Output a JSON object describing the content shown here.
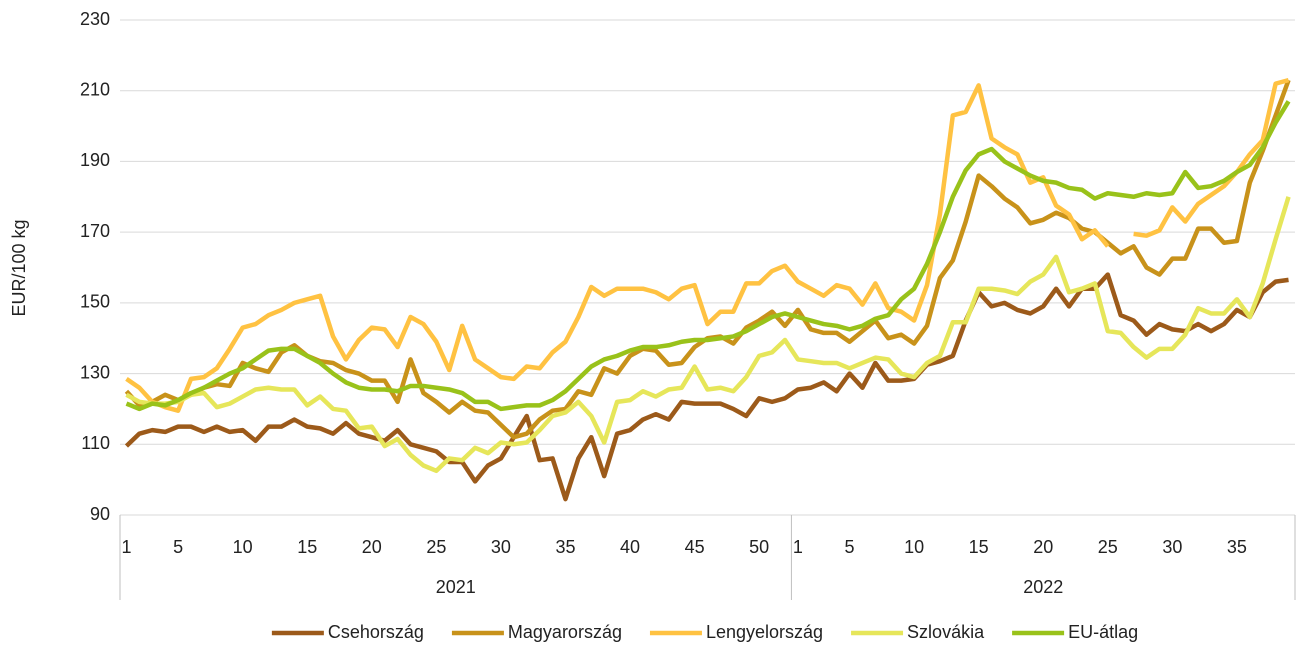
{
  "chart_data": {
    "type": "line",
    "y_label": "EUR/100 kg",
    "categories": [
      "1",
      null,
      null,
      null,
      "5",
      null,
      null,
      null,
      null,
      "10",
      null,
      null,
      null,
      null,
      "15",
      null,
      null,
      null,
      null,
      "20",
      null,
      null,
      null,
      null,
      "25",
      null,
      null,
      null,
      null,
      "30",
      null,
      null,
      null,
      null,
      "35",
      null,
      null,
      null,
      null,
      "40",
      null,
      null,
      null,
      null,
      "45",
      null,
      null,
      null,
      null,
      "50",
      null,
      null,
      "1",
      null,
      null,
      null,
      "5",
      null,
      null,
      null,
      null,
      "10",
      null,
      null,
      null,
      null,
      "15",
      null,
      null,
      null,
      null,
      "20",
      null,
      null,
      null,
      null,
      "25",
      null,
      null,
      null,
      null,
      "30",
      null,
      null,
      null,
      null,
      "35",
      null,
      null,
      null,
      null
    ],
    "x_groups": [
      "2021",
      "2022"
    ],
    "ylim": [
      90,
      230
    ],
    "yticks": [
      90,
      110,
      130,
      150,
      170,
      190,
      210,
      230
    ],
    "grid": true,
    "legend": "bottom",
    "series": [
      {
        "name": "Csehország",
        "color": "#9c5a1a",
        "values": [
          109.5,
          113,
          114,
          113.5,
          115,
          115,
          113.5,
          115,
          113.5,
          114,
          111,
          115,
          115,
          117,
          115,
          114.5,
          113,
          116,
          113,
          112,
          111,
          114,
          110,
          109,
          108,
          105,
          105,
          99.5,
          104,
          106,
          112,
          118,
          105.5,
          106,
          94.5,
          106,
          112,
          101,
          113,
          114,
          117,
          118.5,
          117,
          122,
          121.5,
          121.5,
          121.5,
          120,
          118,
          123,
          122,
          123,
          125.5,
          126,
          127.5,
          125,
          130,
          126,
          133,
          128,
          128,
          128.5,
          132.5,
          133.5,
          135,
          145,
          153,
          149,
          150,
          148,
          147,
          149,
          154,
          149,
          154,
          154,
          158,
          146.5,
          145,
          141,
          144,
          142.5,
          142,
          144,
          142,
          144,
          148,
          146,
          153,
          156,
          156.5
        ]
      },
      {
        "name": "Magyarország",
        "color": "#c8921a",
        "values": [
          125,
          121,
          122,
          124,
          122.5,
          124,
          126,
          127,
          126.5,
          133,
          131.5,
          130.5,
          136,
          138,
          135,
          133.5,
          133,
          131,
          130,
          128,
          128,
          122,
          134,
          124.5,
          122,
          119,
          122,
          119.5,
          119,
          115.5,
          112,
          113,
          117,
          119.5,
          120,
          125,
          124,
          131.5,
          130,
          135,
          137,
          136.5,
          132.5,
          133,
          137.5,
          140,
          140.5,
          138.5,
          143,
          145,
          147.5,
          143.5,
          148,
          142.5,
          141.5,
          141.5,
          139,
          142,
          145,
          140,
          141,
          138.5,
          143.5,
          157,
          162,
          173,
          186,
          183,
          179.5,
          177,
          172.5,
          173.5,
          175.5,
          174,
          171,
          170,
          167,
          164,
          166,
          160,
          158,
          162.5,
          162.5,
          171,
          171,
          167,
          167.5,
          184,
          193,
          203,
          213
        ]
      },
      {
        "name": "Lengyelország",
        "color": "#ffc242",
        "values": [
          128.5,
          126,
          122,
          120.5,
          119.5,
          128.5,
          129,
          131.5,
          137,
          143,
          144,
          146.5,
          148,
          150,
          151,
          152,
          140.5,
          134,
          139.5,
          143,
          142.5,
          137.5,
          146,
          144,
          139,
          131,
          143.5,
          134,
          131.5,
          129,
          128.5,
          132,
          131.5,
          136,
          139,
          146,
          154.5,
          152,
          154,
          154,
          154,
          153,
          151,
          154,
          155,
          144,
          147.5,
          147.5,
          155.5,
          155.5,
          159,
          160.5,
          156,
          154,
          152,
          155,
          154,
          149.5,
          155.5,
          148.5,
          147.5,
          145,
          155,
          175,
          203,
          204,
          211.5,
          196.5,
          194,
          192,
          184,
          185.5,
          177.5,
          175,
          168,
          170.5,
          166,
          null,
          169.5,
          169,
          170.5,
          177,
          173,
          178,
          180.5,
          183,
          187,
          192,
          196,
          212,
          213
        ]
      },
      {
        "name": "Szlovákia",
        "color": "#e6e65a",
        "values": [
          124,
          122,
          121.5,
          121.5,
          122,
          124,
          124.5,
          120.5,
          121.5,
          123.5,
          125.5,
          126,
          125.5,
          125.5,
          121,
          123.5,
          120,
          119.5,
          114.5,
          115,
          109.5,
          111.5,
          107,
          104,
          102.5,
          106,
          105.5,
          109,
          107.5,
          110.5,
          110,
          110.5,
          114,
          118,
          119,
          122,
          118,
          110.5,
          122,
          122.5,
          125,
          123.5,
          125.5,
          126,
          132,
          125.5,
          126,
          125,
          129,
          135,
          136,
          139.5,
          134,
          133.5,
          133,
          133,
          131.5,
          133,
          134.5,
          134,
          130,
          129,
          133,
          135,
          144.5,
          144.5,
          154,
          154,
          153.5,
          152.5,
          156,
          158,
          163,
          153,
          154,
          155.5,
          142,
          141.5,
          137.5,
          134.5,
          137,
          137,
          141,
          148.5,
          147,
          147,
          151,
          146,
          155.5,
          168,
          180
        ]
      },
      {
        "name": "EU-átlag",
        "color": "#99c21a",
        "values": [
          121.5,
          120,
          121.5,
          121,
          122.5,
          124.5,
          126,
          128,
          130,
          131.5,
          134,
          136.5,
          137,
          137,
          135,
          133,
          130,
          127.5,
          126,
          125.5,
          125.5,
          125,
          126.5,
          126.5,
          126,
          125.5,
          124.5,
          122,
          122,
          120,
          120.5,
          121,
          121,
          122.5,
          125,
          128.5,
          132,
          134,
          135,
          136.5,
          137.5,
          137.5,
          138,
          139,
          139.5,
          139.5,
          140,
          140.5,
          142,
          144,
          146,
          147,
          146,
          145,
          144,
          143.5,
          142.5,
          143.5,
          145.5,
          146.5,
          151,
          154,
          161,
          170,
          180,
          187.5,
          192,
          193.5,
          190,
          188,
          186,
          184.5,
          184,
          182.5,
          182,
          179.5,
          181,
          180.5,
          180,
          181,
          180.5,
          181,
          187,
          182.5,
          183,
          184.5,
          187,
          189,
          194,
          201,
          207
        ]
      }
    ]
  }
}
